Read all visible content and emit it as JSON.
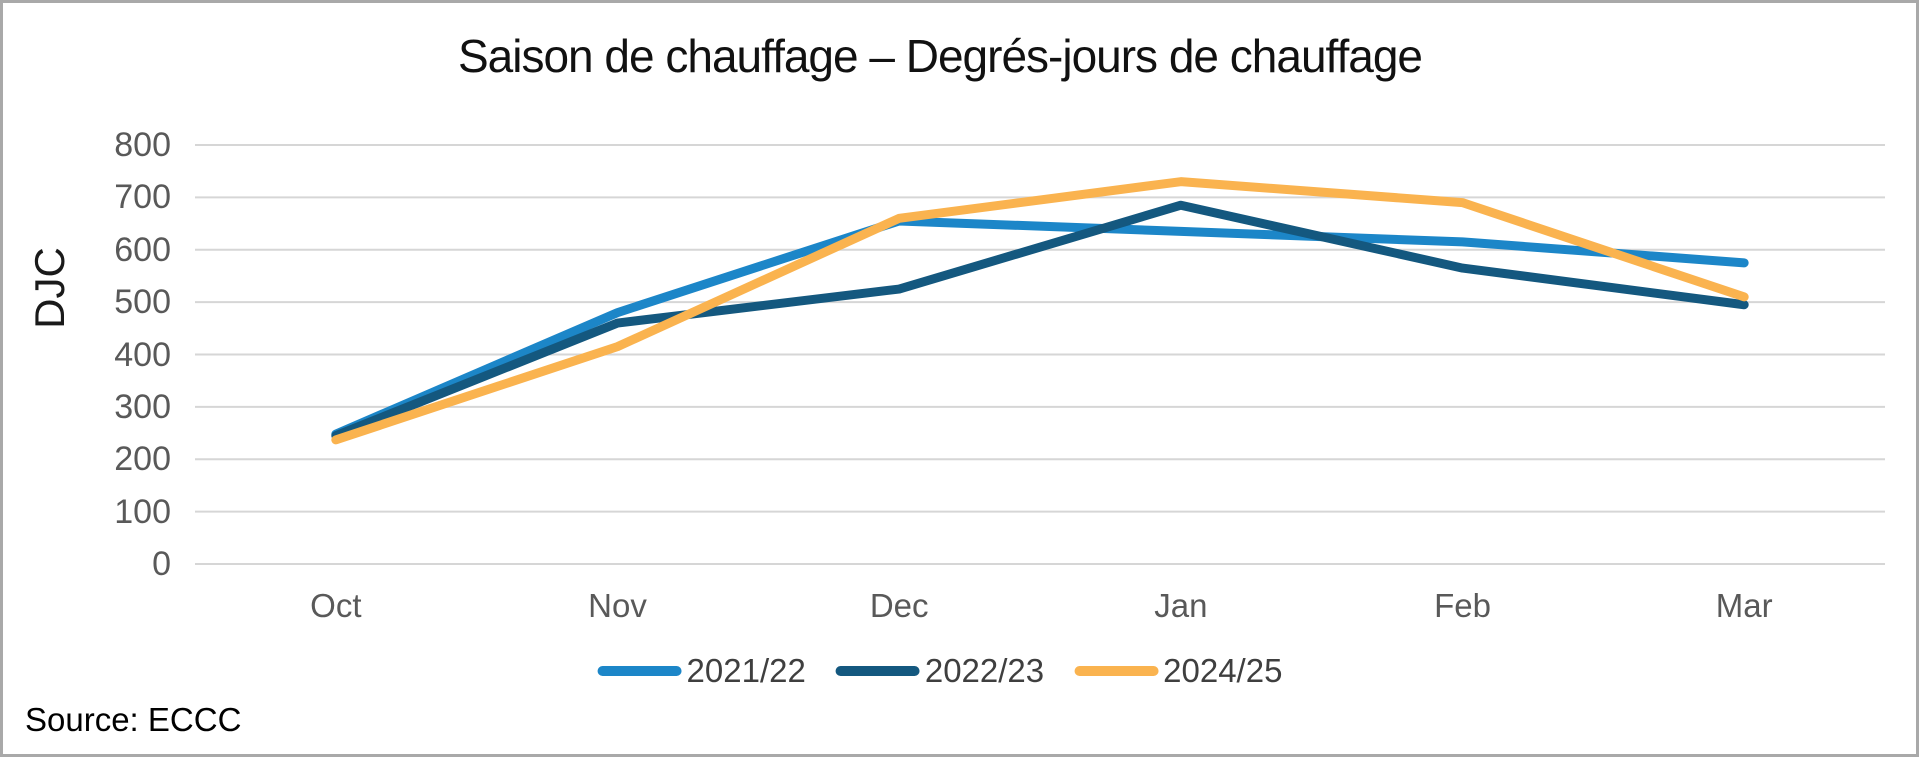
{
  "page": {
    "background": "#ffffff",
    "border_color": "#a9a9a9"
  },
  "chart_data": {
    "type": "line",
    "title": "Saison de chauffage – Degrés-jours de chauffage",
    "xlabel": "",
    "ylabel": "DJC",
    "source": "Source: ECCC",
    "categories": [
      "Oct",
      "Nov",
      "Dec",
      "Jan",
      "Feb",
      "Mar"
    ],
    "yticks": [
      0,
      100,
      200,
      300,
      400,
      500,
      600,
      700,
      800
    ],
    "ylim": [
      0,
      800
    ],
    "grid": "horizontal-gridlines",
    "gridline_color": "#d6d6d6",
    "tick_label_color": "#595959",
    "legend_position": "bottom-center",
    "series": [
      {
        "name": "2021/22",
        "color": "#1c86c8",
        "values": [
          248,
          480,
          655,
          635,
          615,
          575
        ]
      },
      {
        "name": "2022/23",
        "color": "#14587f",
        "values": [
          245,
          460,
          525,
          685,
          565,
          495
        ]
      },
      {
        "name": "2024/25",
        "color": "#fab34f",
        "values": [
          237,
          415,
          660,
          730,
          690,
          510
        ]
      }
    ]
  }
}
